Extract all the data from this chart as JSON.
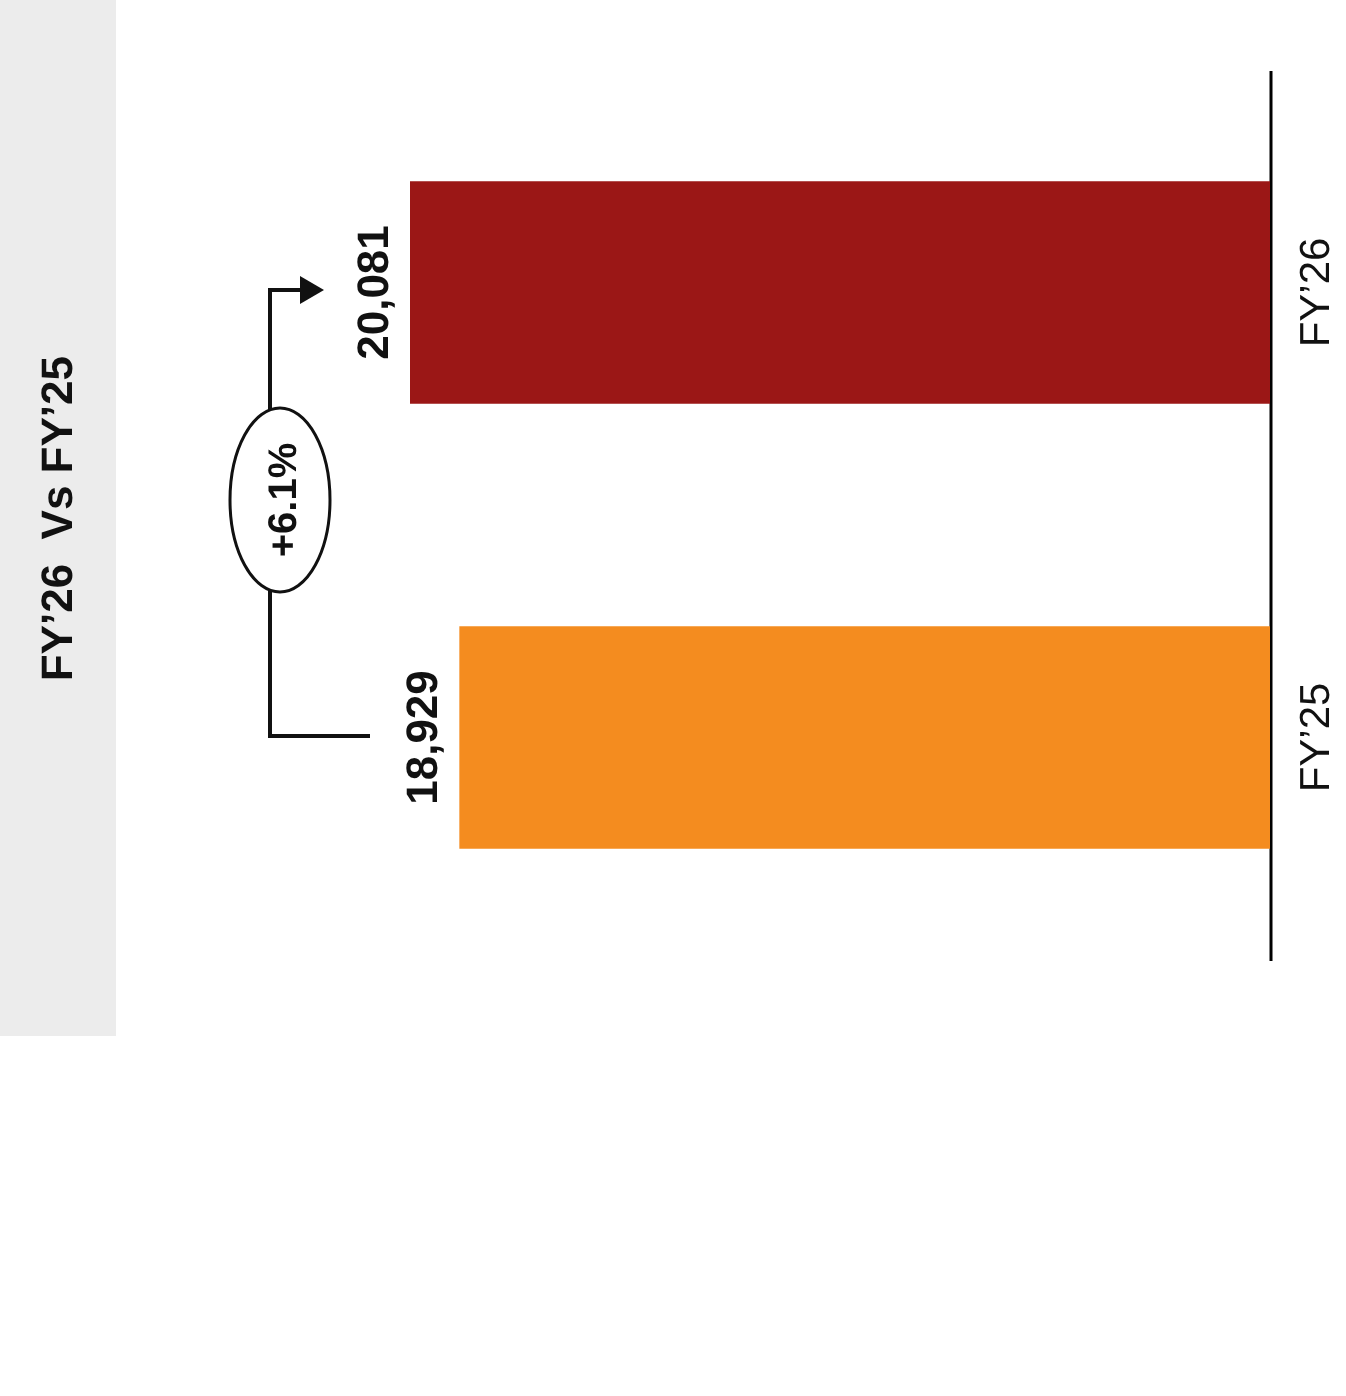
{
  "chart_data": {
    "type": "bar",
    "orientation": "horizontal",
    "title": "FY’26  Vs FY’25",
    "categories": [
      "FY’26",
      "FY’25"
    ],
    "values": [
      20081,
      18929
    ],
    "colors": [
      "#9b1716",
      "#f48c1f"
    ],
    "value_labels": [
      "20,081",
      "18,929"
    ],
    "annotations": [
      "+6.1%"
    ]
  }
}
